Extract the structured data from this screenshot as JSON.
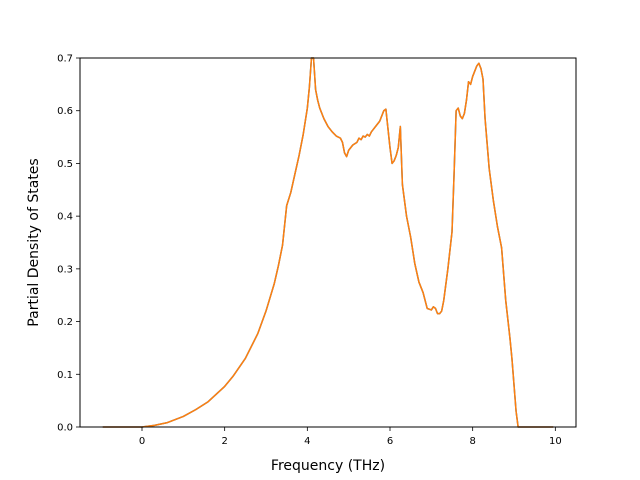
{
  "chart_data": {
    "type": "line",
    "title": "",
    "xlabel": "Frequency (THz)",
    "ylabel": "Partial Density of States",
    "xlim": [
      -1.5,
      10.5
    ],
    "ylim": [
      0.0,
      0.7
    ],
    "xticks": [
      0,
      2,
      4,
      6,
      8,
      10
    ],
    "yticks": [
      0.0,
      0.1,
      0.2,
      0.3,
      0.4,
      0.5,
      0.6,
      0.7
    ],
    "grid": false,
    "legend": "none",
    "series": [
      {
        "color": "#1f77b4",
        "x": [
          -0.95,
          0.0,
          0.3,
          0.6,
          1.0,
          1.3,
          1.6,
          2.0,
          2.2,
          2.5,
          2.8,
          3.0,
          3.2,
          3.3,
          3.4,
          3.5,
          3.6,
          3.7,
          3.8,
          3.9,
          4.0,
          4.05,
          4.1,
          4.15,
          4.2,
          4.25,
          4.3,
          4.4,
          4.5,
          4.6,
          4.7,
          4.8,
          4.85,
          4.9,
          4.95,
          5.0,
          5.05,
          5.1,
          5.2,
          5.25,
          5.3,
          5.35,
          5.4,
          5.45,
          5.5,
          5.55,
          5.6,
          5.7,
          5.75,
          5.8,
          5.85,
          5.9,
          6.0,
          6.05,
          6.1,
          6.15,
          6.2,
          6.25,
          6.3,
          6.4,
          6.5,
          6.6,
          6.7,
          6.8,
          6.9,
          7.0,
          7.05,
          7.1,
          7.15,
          7.2,
          7.25,
          7.3,
          7.4,
          7.5,
          7.55,
          7.6,
          7.65,
          7.7,
          7.75,
          7.8,
          7.85,
          7.9,
          7.95,
          8.0,
          8.05,
          8.1,
          8.15,
          8.2,
          8.25,
          8.3,
          8.4,
          8.5,
          8.6,
          8.7,
          8.8,
          8.9,
          8.95,
          9.0,
          9.05,
          9.1,
          9.5,
          9.95
        ],
        "y": [
          0.0,
          0.0,
          0.003,
          0.008,
          0.02,
          0.033,
          0.048,
          0.077,
          0.096,
          0.13,
          0.177,
          0.22,
          0.272,
          0.306,
          0.345,
          0.42,
          0.445,
          0.48,
          0.515,
          0.555,
          0.605,
          0.645,
          0.7,
          0.7,
          0.64,
          0.62,
          0.605,
          0.585,
          0.57,
          0.56,
          0.552,
          0.548,
          0.54,
          0.52,
          0.513,
          0.525,
          0.53,
          0.535,
          0.54,
          0.548,
          0.545,
          0.552,
          0.55,
          0.555,
          0.552,
          0.56,
          0.565,
          0.575,
          0.58,
          0.59,
          0.6,
          0.603,
          0.53,
          0.5,
          0.505,
          0.515,
          0.53,
          0.57,
          0.46,
          0.4,
          0.36,
          0.31,
          0.275,
          0.255,
          0.225,
          0.222,
          0.228,
          0.225,
          0.215,
          0.215,
          0.22,
          0.24,
          0.3,
          0.37,
          0.48,
          0.6,
          0.605,
          0.59,
          0.585,
          0.595,
          0.62,
          0.655,
          0.65,
          0.665,
          0.675,
          0.685,
          0.69,
          0.68,
          0.66,
          0.585,
          0.49,
          0.43,
          0.38,
          0.34,
          0.24,
          0.17,
          0.13,
          0.08,
          0.03,
          0.0,
          0.0,
          0.0
        ]
      },
      {
        "color": "#ff7f0e",
        "x": [
          -0.95,
          0.0,
          0.3,
          0.6,
          1.0,
          1.3,
          1.6,
          2.0,
          2.2,
          2.5,
          2.8,
          3.0,
          3.2,
          3.3,
          3.4,
          3.5,
          3.6,
          3.7,
          3.8,
          3.9,
          4.0,
          4.05,
          4.1,
          4.15,
          4.2,
          4.25,
          4.3,
          4.4,
          4.5,
          4.6,
          4.7,
          4.8,
          4.85,
          4.9,
          4.95,
          5.0,
          5.05,
          5.1,
          5.2,
          5.25,
          5.3,
          5.35,
          5.4,
          5.45,
          5.5,
          5.55,
          5.6,
          5.7,
          5.75,
          5.8,
          5.85,
          5.9,
          6.0,
          6.05,
          6.1,
          6.15,
          6.2,
          6.25,
          6.3,
          6.4,
          6.5,
          6.6,
          6.7,
          6.8,
          6.9,
          7.0,
          7.05,
          7.1,
          7.15,
          7.2,
          7.25,
          7.3,
          7.4,
          7.5,
          7.55,
          7.6,
          7.65,
          7.7,
          7.75,
          7.8,
          7.85,
          7.9,
          7.95,
          8.0,
          8.05,
          8.1,
          8.15,
          8.2,
          8.25,
          8.3,
          8.4,
          8.5,
          8.6,
          8.7,
          8.8,
          8.9,
          8.95,
          9.0,
          9.05,
          9.1,
          9.5,
          9.95
        ],
        "y": [
          0.0,
          0.0,
          0.003,
          0.008,
          0.02,
          0.033,
          0.048,
          0.077,
          0.096,
          0.13,
          0.177,
          0.22,
          0.272,
          0.306,
          0.345,
          0.42,
          0.445,
          0.48,
          0.515,
          0.555,
          0.605,
          0.645,
          0.7,
          0.7,
          0.64,
          0.62,
          0.605,
          0.585,
          0.57,
          0.56,
          0.552,
          0.548,
          0.54,
          0.52,
          0.513,
          0.525,
          0.53,
          0.535,
          0.54,
          0.548,
          0.545,
          0.552,
          0.55,
          0.555,
          0.552,
          0.56,
          0.565,
          0.575,
          0.58,
          0.59,
          0.6,
          0.603,
          0.53,
          0.5,
          0.505,
          0.515,
          0.53,
          0.57,
          0.46,
          0.4,
          0.36,
          0.31,
          0.275,
          0.255,
          0.225,
          0.222,
          0.228,
          0.225,
          0.215,
          0.215,
          0.22,
          0.24,
          0.3,
          0.37,
          0.48,
          0.6,
          0.605,
          0.59,
          0.585,
          0.595,
          0.62,
          0.655,
          0.65,
          0.665,
          0.675,
          0.685,
          0.69,
          0.68,
          0.66,
          0.585,
          0.49,
          0.43,
          0.38,
          0.34,
          0.24,
          0.17,
          0.13,
          0.08,
          0.03,
          0.0,
          0.0,
          0.0
        ]
      }
    ]
  }
}
